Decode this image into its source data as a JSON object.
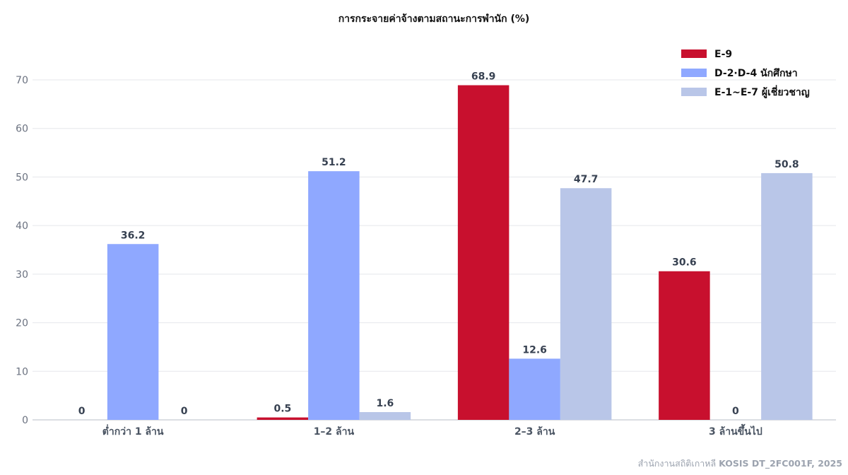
{
  "chart_data": {
    "type": "bar",
    "title": "การกระจายค่าจ้างตามสถานะการพำนัก (%)",
    "categories": [
      "ต่ำกว่า 1 ล้าน",
      "1–2 ล้าน",
      "2–3 ล้าน",
      "3 ล้านขึ้นไป"
    ],
    "series": [
      {
        "name": "E-9",
        "color": "#c8102e",
        "values": [
          0,
          0.5,
          68.9,
          30.6
        ]
      },
      {
        "name": "D-2·D-4 นักศึกษา",
        "color": "#8fa8ff",
        "values": [
          36.2,
          51.2,
          12.6,
          0
        ]
      },
      {
        "name": "E-1~E-7 ผู้เชี่ยวชาญ",
        "color": "#b9c6e8",
        "values": [
          0,
          1.6,
          47.7,
          50.8
        ]
      }
    ],
    "ylim": [
      0,
      70
    ],
    "yticks": [
      0,
      10,
      20,
      30,
      40,
      50,
      60,
      70
    ],
    "xlabel": "",
    "ylabel": "",
    "grid": true,
    "legend_position": "top-right"
  },
  "source": {
    "prefix": "สำนักงานสถิติเกาหลี ",
    "bold": "KOSIS DT_2FC001F, 2025"
  }
}
